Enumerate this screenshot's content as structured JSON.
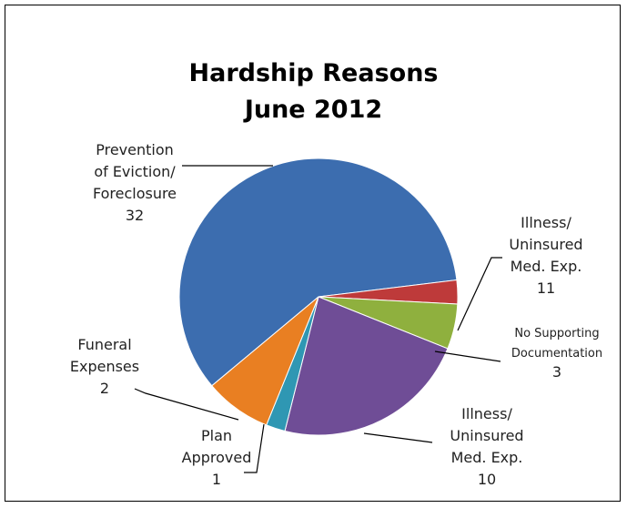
{
  "chart_data": {
    "type": "pie",
    "title": [
      "Hardship Reasons",
      "June 2012"
    ],
    "slices": [
      {
        "name": "Prevention of Eviction/ Foreclosure",
        "label_lines": [
          "Prevention",
          "of Eviction/",
          "Foreclosure"
        ],
        "value": 32,
        "color": "#3C6DAF"
      },
      {
        "name": "Illness/ Uninsured Med. Exp.",
        "label_lines": [
          "Illness/",
          "Uninsured",
          "Med. Exp."
        ],
        "value": 11,
        "color": "#BE3A3A"
      },
      {
        "name": "No Supporting Documentation",
        "label_lines": [
          "No Supporting",
          "Documentation"
        ],
        "value": 3,
        "color": "#8FB03E"
      },
      {
        "name": "Illness/ Uninsured Med. Exp.",
        "label_lines": [
          "Illness/",
          "Uninsured",
          "Med. Exp."
        ],
        "value": 10,
        "color": "#6F4D96"
      },
      {
        "name": "Plan Approved",
        "label_lines": [
          "Plan",
          "Approved"
        ],
        "value": 1,
        "color": "#2F97B3"
      },
      {
        "name": "Funeral Expenses",
        "label_lines": [
          "Funeral",
          "Expenses"
        ],
        "value": 2,
        "color": "#E97F22"
      }
    ]
  }
}
